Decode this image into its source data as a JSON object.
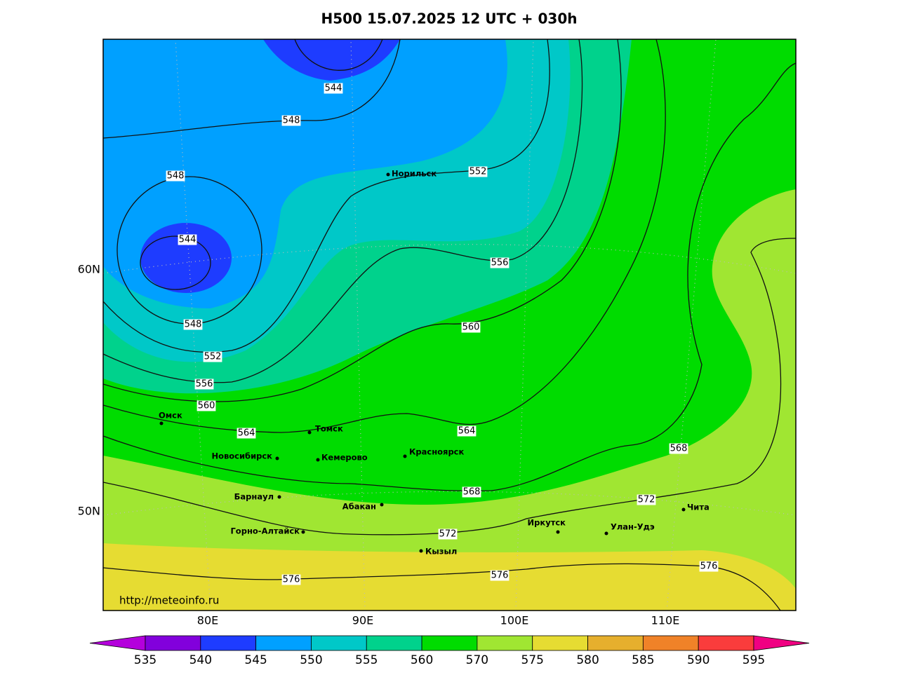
{
  "title": "H500  15.07.2025 12 UTC + 030h",
  "map": {
    "lon_labels": [
      "80E",
      "90E",
      "100E",
      "110E"
    ],
    "lat_labels": [
      "60N",
      "50N"
    ],
    "contour_labels": [
      544,
      548,
      548,
      544,
      548,
      552,
      556,
      560,
      564,
      552,
      556,
      560,
      564,
      568,
      568,
      572,
      572,
      576,
      576,
      576
    ],
    "cities": [
      "Норильск",
      "Омск",
      "Томск",
      "Новосибирск",
      "Кемерово",
      "Красноярск",
      "Барнаул",
      "Абакан",
      "Горно-Алтайск",
      "Кызыл",
      "Иркутск",
      "Улан-Удэ",
      "Чита"
    ],
    "credit": "http://meteoinfo.ru"
  },
  "colorbar": {
    "ticks": [
      535,
      540,
      545,
      550,
      555,
      560,
      570,
      575,
      580,
      585,
      590,
      595
    ],
    "under_color": "#b400dc",
    "colors": [
      "#8200dc",
      "#1e3cff",
      "#00a0ff",
      "#00c8c8",
      "#00d28c",
      "#00dc00",
      "#a0e632",
      "#e6dc32",
      "#e6af2d",
      "#f08228",
      "#fa3c3c"
    ],
    "over_color": "#f00082"
  }
}
